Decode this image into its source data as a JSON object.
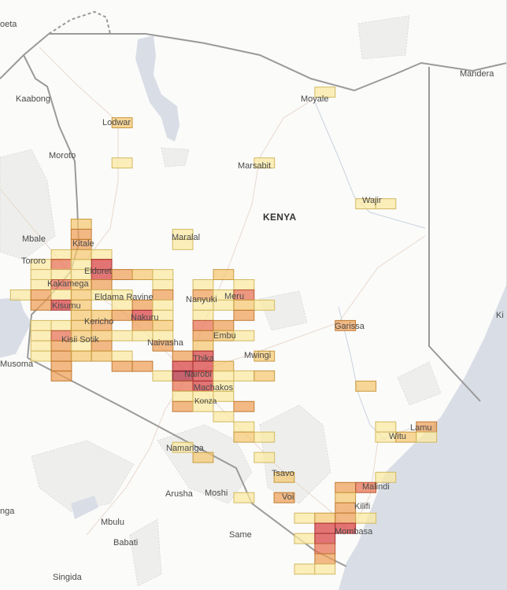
{
  "map": {
    "country_label": "KENYA",
    "places": [
      "oeta",
      "Kaabong",
      "Moroto",
      "Lodwar",
      "Marsabit",
      "Moyale",
      "Mandera",
      "Wajir",
      "Mbale",
      "Tororo",
      "Kitale",
      "Maralal",
      "Eldoret",
      "Kakamega",
      "Eldama Ravine",
      "Nanyuki",
      "Meru",
      "Kisumu",
      "Kericho",
      "Nakuru",
      "Embu",
      "Kisii Sotik",
      "Naivasha",
      "Mwingi",
      "Thika",
      "Nairobi",
      "Machakos",
      "Musoma",
      "Konza",
      "Garissa",
      "Namanga",
      "Arusha",
      "Moshi",
      "Tsavo",
      "Voi",
      "Malindi",
      "Kilifi",
      "Mombasa",
      "Same",
      "Mbulu",
      "Babati",
      "Singida",
      "Witu",
      "Lamu",
      "nga",
      "Ki"
    ],
    "colors": {
      "water": "#d9dee6",
      "park": "#eeefec",
      "border": "#9a9a9a",
      "road": "#e8d9cc"
    }
  },
  "heatmap": {
    "bin_size_deg": [
      0.358,
      0.179
    ],
    "level_colors": [
      "#fbe9a0",
      "#f5c870",
      "#ef9f58",
      "#e87050",
      "#d84040",
      "#b02838"
    ],
    "cells": [
      [
        39.22,
        3.68,
        1
      ],
      [
        35.64,
        3.14,
        2
      ],
      [
        35.64,
        2.43,
        1
      ],
      [
        38.15,
        2.43,
        1
      ],
      [
        39.94,
        1.71,
        1
      ],
      [
        40.29,
        1.71,
        1
      ],
      [
        34.92,
        1.35,
        2
      ],
      [
        34.92,
        1.17,
        3
      ],
      [
        36.71,
        1.17,
        1
      ],
      [
        34.92,
        0.99,
        3
      ],
      [
        36.71,
        0.99,
        1
      ],
      [
        34.57,
        0.81,
        1
      ],
      [
        34.92,
        0.81,
        2
      ],
      [
        35.28,
        0.81,
        1
      ],
      [
        34.21,
        0.64,
        1
      ],
      [
        34.57,
        0.64,
        4
      ],
      [
        34.92,
        0.64,
        1
      ],
      [
        35.28,
        0.64,
        5
      ],
      [
        34.21,
        0.46,
        1
      ],
      [
        34.57,
        0.46,
        1
      ],
      [
        34.92,
        0.46,
        1
      ],
      [
        35.28,
        0.46,
        5
      ],
      [
        35.64,
        0.46,
        3
      ],
      [
        36.0,
        0.46,
        2
      ],
      [
        36.36,
        0.46,
        1
      ],
      [
        37.43,
        0.46,
        2
      ],
      [
        34.21,
        0.28,
        1
      ],
      [
        34.57,
        0.28,
        4
      ],
      [
        34.92,
        0.28,
        2
      ],
      [
        35.28,
        0.28,
        3
      ],
      [
        36.36,
        0.28,
        1
      ],
      [
        37.07,
        0.28,
        1
      ],
      [
        37.79,
        0.28,
        1
      ],
      [
        33.85,
        0.1,
        1
      ],
      [
        34.21,
        0.1,
        3
      ],
      [
        34.57,
        0.1,
        1
      ],
      [
        34.92,
        0.1,
        2
      ],
      [
        35.28,
        0.1,
        1
      ],
      [
        35.64,
        0.1,
        1
      ],
      [
        36.36,
        0.1,
        3
      ],
      [
        37.07,
        0.1,
        3
      ],
      [
        37.43,
        0.1,
        1
      ],
      [
        37.79,
        0.1,
        4
      ],
      [
        34.21,
        -0.08,
        3
      ],
      [
        34.57,
        -0.08,
        5
      ],
      [
        34.92,
        -0.08,
        2
      ],
      [
        35.64,
        -0.08,
        1
      ],
      [
        36.0,
        -0.08,
        3
      ],
      [
        36.36,
        -0.08,
        1
      ],
      [
        37.07,
        -0.08,
        1
      ],
      [
        37.43,
        -0.08,
        1
      ],
      [
        37.79,
        -0.08,
        2
      ],
      [
        38.15,
        -0.08,
        1
      ],
      [
        34.92,
        -0.26,
        2
      ],
      [
        35.28,
        -0.26,
        2
      ],
      [
        35.64,
        -0.26,
        3
      ],
      [
        36.0,
        -0.26,
        5
      ],
      [
        36.36,
        -0.26,
        1
      ],
      [
        37.07,
        -0.26,
        1
      ],
      [
        37.79,
        -0.26,
        3
      ],
      [
        34.21,
        -0.44,
        1
      ],
      [
        34.57,
        -0.44,
        1
      ],
      [
        34.92,
        -0.44,
        2
      ],
      [
        35.28,
        -0.44,
        3
      ],
      [
        36.0,
        -0.44,
        3
      ],
      [
        36.36,
        -0.44,
        2
      ],
      [
        37.07,
        -0.44,
        4
      ],
      [
        37.43,
        -0.44,
        3
      ],
      [
        39.58,
        -0.44,
        3
      ],
      [
        34.21,
        -0.62,
        1
      ],
      [
        34.57,
        -0.62,
        4
      ],
      [
        34.92,
        -0.62,
        2
      ],
      [
        35.28,
        -0.62,
        2
      ],
      [
        35.64,
        -0.62,
        1
      ],
      [
        36.0,
        -0.62,
        1
      ],
      [
        36.36,
        -0.62,
        1
      ],
      [
        37.07,
        -0.62,
        3
      ],
      [
        37.43,
        -0.62,
        2
      ],
      [
        37.79,
        -0.62,
        1
      ],
      [
        34.21,
        -0.8,
        1
      ],
      [
        34.57,
        -0.8,
        3
      ],
      [
        34.92,
        -0.8,
        1
      ],
      [
        35.28,
        -0.8,
        3
      ],
      [
        36.36,
        -0.8,
        3
      ],
      [
        37.07,
        -0.8,
        2
      ],
      [
        34.21,
        -0.98,
        1
      ],
      [
        34.57,
        -0.98,
        3
      ],
      [
        34.92,
        -0.98,
        2
      ],
      [
        35.28,
        -0.98,
        2
      ],
      [
        35.64,
        -0.98,
        1
      ],
      [
        36.71,
        -0.98,
        3
      ],
      [
        37.07,
        -0.98,
        5
      ],
      [
        38.15,
        -0.98,
        2
      ],
      [
        34.57,
        -1.16,
        3
      ],
      [
        35.64,
        -1.16,
        3
      ],
      [
        36.0,
        -1.16,
        3
      ],
      [
        36.71,
        -1.16,
        5
      ],
      [
        37.07,
        -1.16,
        5
      ],
      [
        37.43,
        -1.16,
        2
      ],
      [
        34.57,
        -1.33,
        3
      ],
      [
        36.36,
        -1.33,
        1
      ],
      [
        36.71,
        -1.33,
        6
      ],
      [
        37.07,
        -1.33,
        5
      ],
      [
        37.43,
        -1.33,
        1
      ],
      [
        37.79,
        -1.33,
        1
      ],
      [
        38.15,
        -1.33,
        2
      ],
      [
        36.71,
        -1.51,
        4
      ],
      [
        37.07,
        -1.51,
        5
      ],
      [
        37.43,
        -1.51,
        1
      ],
      [
        39.94,
        -1.51,
        2
      ],
      [
        36.71,
        -1.69,
        1
      ],
      [
        37.07,
        -1.69,
        1
      ],
      [
        37.43,
        -1.69,
        1
      ],
      [
        36.71,
        -1.87,
        3
      ],
      [
        37.07,
        -1.87,
        1
      ],
      [
        37.79,
        -1.87,
        3
      ],
      [
        37.43,
        -2.05,
        1
      ],
      [
        37.79,
        -2.23,
        1
      ],
      [
        40.29,
        -2.23,
        1
      ],
      [
        41.01,
        -2.23,
        3
      ],
      [
        37.79,
        -2.41,
        2
      ],
      [
        38.15,
        -2.41,
        1
      ],
      [
        40.29,
        -2.41,
        1
      ],
      [
        40.65,
        -2.41,
        2
      ],
      [
        41.01,
        -2.41,
        1
      ],
      [
        36.71,
        -2.59,
        1
      ],
      [
        37.07,
        -2.77,
        2
      ],
      [
        38.15,
        -2.77,
        1
      ],
      [
        38.5,
        -3.12,
        2
      ],
      [
        40.29,
        -3.12,
        1
      ],
      [
        39.58,
        -3.3,
        3
      ],
      [
        39.94,
        -3.3,
        4
      ],
      [
        37.79,
        -3.48,
        1
      ],
      [
        38.5,
        -3.48,
        3
      ],
      [
        39.58,
        -3.48,
        2
      ],
      [
        39.58,
        -3.66,
        3
      ],
      [
        38.86,
        -3.84,
        1
      ],
      [
        39.22,
        -3.84,
        2
      ],
      [
        39.58,
        -3.84,
        3
      ],
      [
        39.94,
        -3.84,
        1
      ],
      [
        39.22,
        -4.02,
        5
      ],
      [
        39.58,
        -4.02,
        5
      ],
      [
        38.86,
        -4.2,
        1
      ],
      [
        39.22,
        -4.2,
        5
      ],
      [
        39.22,
        -4.38,
        4
      ],
      [
        39.22,
        -4.56,
        3
      ],
      [
        38.86,
        -4.74,
        1
      ],
      [
        39.22,
        -4.74,
        1
      ]
    ]
  }
}
